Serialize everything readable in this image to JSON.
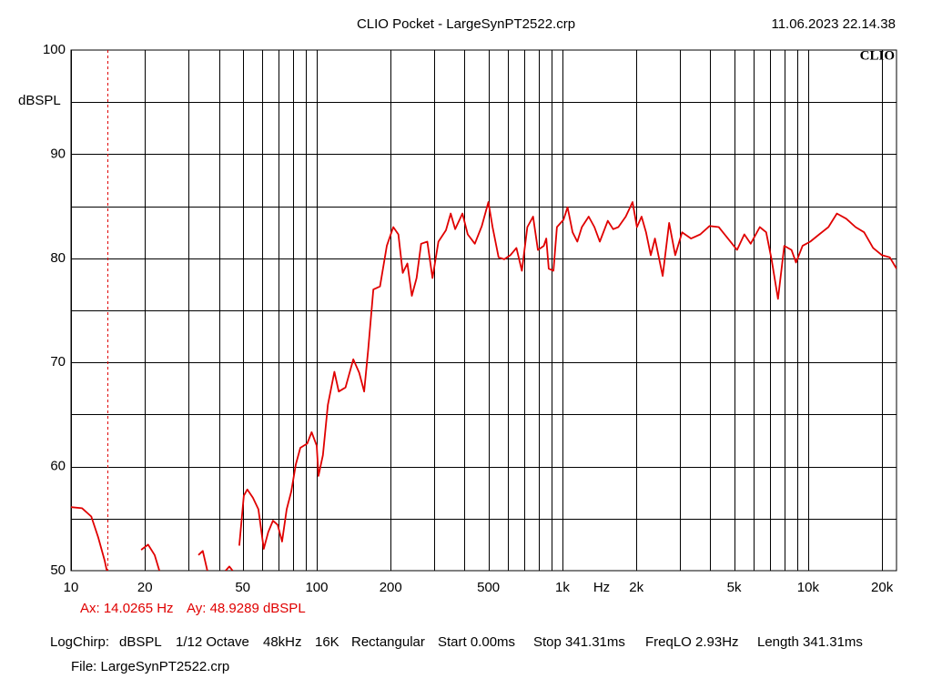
{
  "chart_data": {
    "type": "line",
    "title": "CLIO Pocket - LargeSynPT2522.crp",
    "timestamp": "11.06.2023 22.14.38",
    "logo": "CLIO",
    "y_label": "dBSPL",
    "x_unit": "Hz",
    "log_x": true,
    "xlim": [
      10,
      22900
    ],
    "ylim": [
      50,
      100
    ],
    "xticks": [
      10,
      20,
      50,
      100,
      200,
      500,
      {
        "value": 1000,
        "label": "1k"
      },
      {
        "value": 2000,
        "label": "2k"
      },
      {
        "value": 5000,
        "label": "5k"
      },
      {
        "value": 10000,
        "label": "10k"
      },
      {
        "value": 20000,
        "label": "20k"
      }
    ],
    "x_grid": [
      10,
      20,
      30,
      40,
      50,
      60,
      70,
      80,
      90,
      100,
      200,
      300,
      400,
      500,
      600,
      700,
      800,
      900,
      1000,
      2000,
      3000,
      4000,
      5000,
      6000,
      7000,
      8000,
      9000,
      10000,
      20000
    ],
    "yticks": [
      50,
      60,
      70,
      80,
      90,
      100
    ],
    "y_grid": [
      55,
      60,
      65,
      70,
      75,
      80,
      85,
      90,
      95
    ],
    "x": [
      10,
      11.1,
      12.1,
      12.9,
      13.7,
      14.0,
      null,
      19.3,
      20.6,
      21.9,
      22.9,
      null,
      33,
      34.4,
      35.9,
      null,
      42.6,
      44.1,
      45.5,
      null,
      48.4,
      50.5,
      52.2,
      55,
      57.9,
      60.9,
      63.5,
      66.4,
      69.4,
      72.3,
      75.5,
      78.8,
      82.2,
      85.8,
      91.5,
      95.4,
      100,
      101.7,
      106,
      111,
      118,
      123,
      131,
      141,
      149,
      156,
      162,
      170,
      181,
      193,
      205,
      215,
      224,
      234,
      244,
      255,
      266,
      282,
      296,
      313,
      336,
      351,
      366,
      392,
      412,
      440,
      470,
      500,
      520,
      550,
      580,
      614,
      650,
      684,
      720,
      760,
      795,
      840,
      860,
      880,
      920,
      950,
      1010,
      1050,
      1100,
      1150,
      1200,
      1280,
      1350,
      1420,
      1530,
      1610,
      1690,
      1810,
      1930,
      2010,
      2100,
      2190,
      2290,
      2380,
      2560,
      2720,
      2880,
      3070,
      3340,
      3640,
      3970,
      4330,
      4720,
      5140,
      5500,
      5840,
      6360,
      6750,
      7100,
      7540,
      8000,
      8560,
      8930,
      9500,
      10200,
      11100,
      12100,
      13100,
      14300,
      15600,
      16900,
      18400,
      20000,
      21500,
      22900
    ],
    "series": [
      {
        "color": "#e00000",
        "values": [
          56.1,
          56.0,
          55.2,
          53.2,
          51.0,
          50.0,
          null,
          52.0,
          52.5,
          51.5,
          50.0,
          null,
          51.5,
          51.9,
          50.0,
          null,
          50.0,
          50.4,
          50.0,
          null,
          52.4,
          57.2,
          57.8,
          57.0,
          55.9,
          52.1,
          53.7,
          54.8,
          54.4,
          52.8,
          55.9,
          57.6,
          60.2,
          61.8,
          62.2,
          63.3,
          62.0,
          59.1,
          61.1,
          65.9,
          69.1,
          67.2,
          67.6,
          70.3,
          69.0,
          67.2,
          71.2,
          77.0,
          77.3,
          81.2,
          83.0,
          82.3,
          78.6,
          79.5,
          76.4,
          78.1,
          81.4,
          81.6,
          78.1,
          81.6,
          82.7,
          84.3,
          82.8,
          84.3,
          82.3,
          81.4,
          83.1,
          85.4,
          83.0,
          80.1,
          79.9,
          80.3,
          81.0,
          78.8,
          83.0,
          84.0,
          80.8,
          81.2,
          81.9,
          79.0,
          78.8,
          83.0,
          83.7,
          84.9,
          82.5,
          81.6,
          83.0,
          84.0,
          83.0,
          81.6,
          83.6,
          82.8,
          83.0,
          84.0,
          85.4,
          83.0,
          84.0,
          82.5,
          80.3,
          81.9,
          78.3,
          83.4,
          80.3,
          82.5,
          81.9,
          82.3,
          83.1,
          83.0,
          81.9,
          80.8,
          82.3,
          81.4,
          83.0,
          82.5,
          79.9,
          76.1,
          81.2,
          80.8,
          79.6,
          81.2,
          81.6,
          82.3,
          83.0,
          84.3,
          83.8,
          83.0,
          82.5,
          81.0,
          80.3,
          80.1,
          79.0
        ]
      }
    ],
    "cursor": {
      "x": 14.0265,
      "color": "#e00000",
      "x_label": "Ax: 14.0265 Hz",
      "y_label": "Ay: 48.9289 dBSPL"
    },
    "footer": {
      "settings": [
        "LogChirp:",
        "dBSPL",
        "1/12 Octave",
        "48kHz",
        "16K",
        "Rectangular",
        "Start 0.00ms",
        "Stop 341.31ms",
        "FreqLO 2.93Hz",
        "Length 341.31ms"
      ],
      "file": "File: LargeSynPT2522.crp"
    }
  }
}
